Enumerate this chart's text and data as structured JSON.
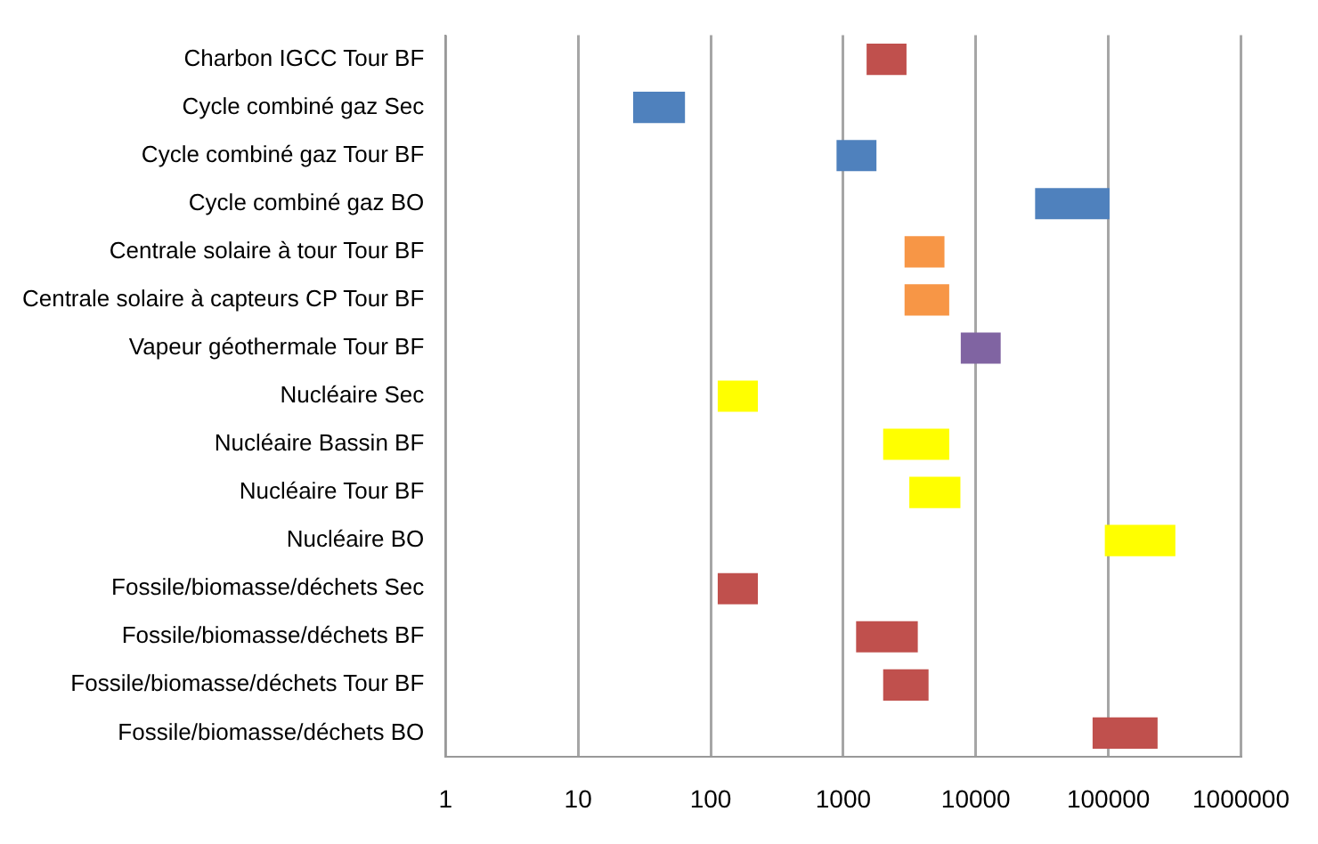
{
  "chart_data": {
    "type": "bar",
    "orientation": "horizontal",
    "log": "x",
    "categories": [
      "Charbon IGCC Tour BF",
      "Cycle combiné gaz Sec",
      "Cycle combiné gaz Tour BF",
      "Cycle combiné gaz BO",
      "Centrale solaire à tour Tour BF",
      "Centrale solaire à capteurs CP Tour BF",
      "Vapeur géothermale Tour BF",
      "Nucléaire Sec",
      "Nucléaire Bassin BF",
      "Nucléaire Tour BF",
      "Nucléaire BO",
      "Fossile/biomasse/déchets Sec",
      "Fossile/biomasse/déchets BF",
      "Fossile/biomasse/déchets Tour BF",
      "Fossile/biomasse/déchets BO"
    ],
    "base": [
      1500,
      26,
      890,
      28000,
      2900,
      2900,
      7700,
      113,
      2000,
      3150,
      94000,
      113,
      1250,
      2000,
      76000
    ],
    "values": [
      1500,
      38,
      890,
      74000,
      2900,
      3400,
      7700,
      114,
      4300,
      4500,
      226000,
      114,
      2400,
      2400,
      159000
    ],
    "colors": [
      "#c0504d",
      "#4f81bd",
      "#4f81bd",
      "#4f81bd",
      "#f79646",
      "#f79646",
      "#8064a2",
      "#ffff00",
      "#ffff00",
      "#ffff00",
      "#ffff00",
      "#c0504d",
      "#c0504d",
      "#c0504d",
      "#c0504d"
    ],
    "xlim": [
      1,
      1000000
    ],
    "xticks": [
      1,
      10,
      100,
      1000,
      10000,
      100000,
      1000000
    ],
    "grid": "x"
  }
}
